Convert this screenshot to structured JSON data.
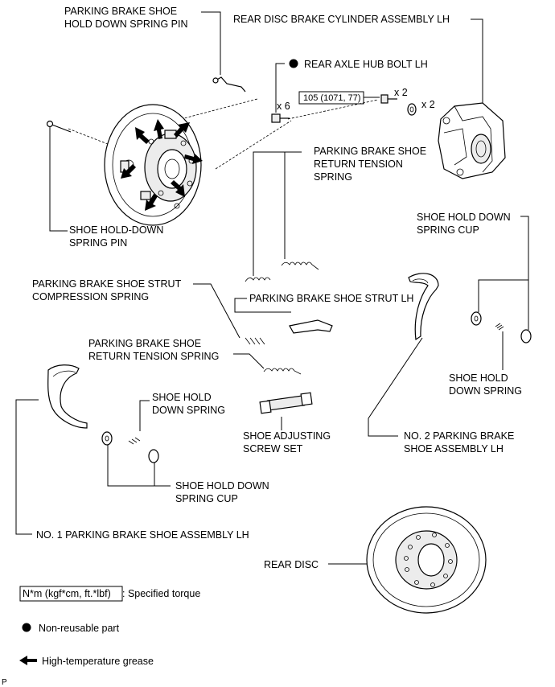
{
  "labels": {
    "pin_top_1": "PARKING BRAKE SHOE",
    "pin_top_2": "HOLD DOWN SPRING PIN",
    "cylinder": "REAR DISC BRAKE CYLINDER ASSEMBLY LH",
    "hub_bolt": "REAR AXLE HUB BOLT LH",
    "torque_value": "105 (1071, 77)",
    "qty_x2_bolt": "x 2",
    "qty_x2_washer": "x 2",
    "qty_x6": "x 6",
    "return_spring_upper_1": "PARKING BRAKE SHOE",
    "return_spring_upper_2": "RETURN TENSION",
    "return_spring_upper_3": "SPRING",
    "hold_pin_1": "SHOE HOLD-DOWN",
    "hold_pin_2": "SPRING PIN",
    "cup_right_1": "SHOE HOLD DOWN",
    "cup_right_2": "SPRING CUP",
    "strut_spring_1": "PARKING BRAKE SHOE STRUT",
    "strut_spring_2": "COMPRESSION SPRING",
    "strut": "PARKING BRAKE SHOE STRUT LH",
    "return_spring_lower_1": "PARKING BRAKE SHOE",
    "return_spring_lower_2": "RETURN TENSION SPRING",
    "hold_spring_right_1": "SHOE HOLD",
    "hold_spring_right_2": "DOWN SPRING",
    "hold_spring_left_1": "SHOE HOLD",
    "hold_spring_left_2": "DOWN SPRING",
    "adjuster_1": "SHOE ADJUSTING",
    "adjuster_2": "SCREW SET",
    "shoe2_1": "NO. 2 PARKING BRAKE",
    "shoe2_2": "SHOE ASSEMBLY LH",
    "cup_left_1": "SHOE HOLD DOWN",
    "cup_left_2": "SPRING CUP",
    "shoe1": "NO. 1 PARKING BRAKE SHOE ASSEMBLY LH",
    "rear_disc": "REAR DISC"
  },
  "legend": {
    "torque_unit": "N*m (kgf*cm, ft.*lbf)",
    "torque_desc": ": Specified torque",
    "nonreusable": "Non-reusable part",
    "grease": "High-temperature grease"
  },
  "footer": {
    "code": "P"
  }
}
